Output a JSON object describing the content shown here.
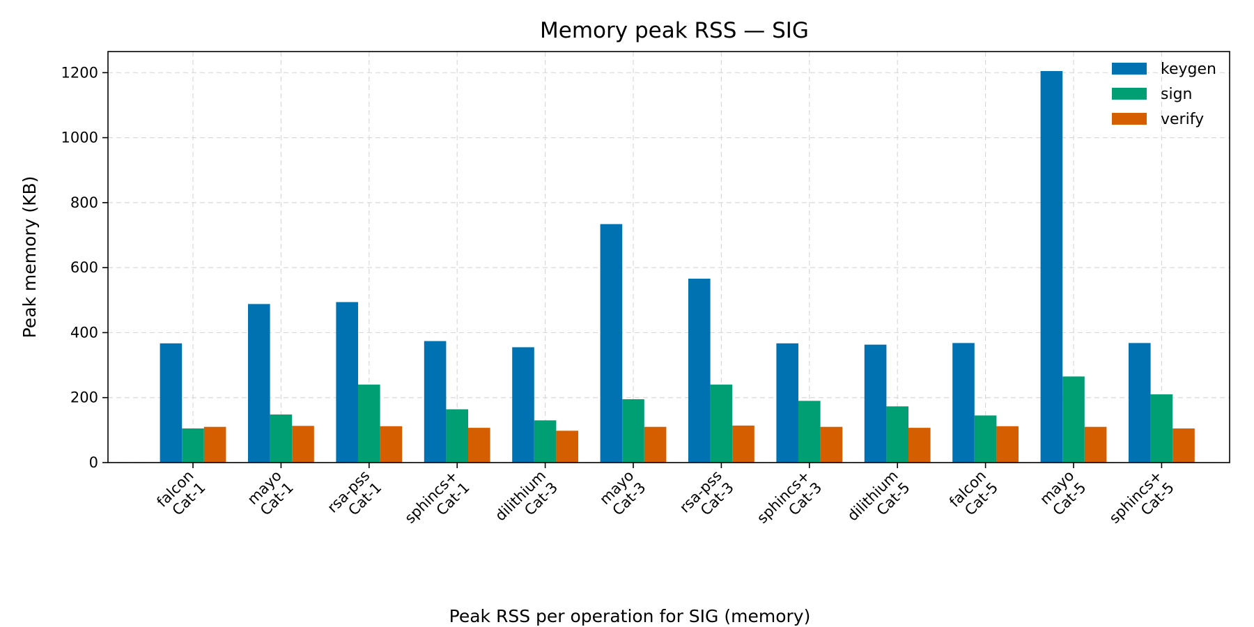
{
  "chart_data": {
    "type": "bar",
    "title": "Memory peak RSS — SIG",
    "xlabel": "Peak RSS per operation for SIG (memory)",
    "ylabel": "Peak memory (KB)",
    "ylim": [
      0,
      1265
    ],
    "yticks": [
      0,
      200,
      400,
      600,
      800,
      1000,
      1200
    ],
    "grid": true,
    "legend_position": "top-right",
    "categories": [
      [
        "falcon",
        "Cat-1"
      ],
      [
        "mayo",
        "Cat-1"
      ],
      [
        "rsa-pss",
        "Cat-1"
      ],
      [
        "sphincs+",
        "Cat-1"
      ],
      [
        "dilithium",
        "Cat-3"
      ],
      [
        "mayo",
        "Cat-3"
      ],
      [
        "rsa-pss",
        "Cat-3"
      ],
      [
        "sphincs+",
        "Cat-3"
      ],
      [
        "dilithium",
        "Cat-5"
      ],
      [
        "falcon",
        "Cat-5"
      ],
      [
        "mayo",
        "Cat-5"
      ],
      [
        "sphincs+",
        "Cat-5"
      ]
    ],
    "series": [
      {
        "name": "keygen",
        "color": "#0072b2",
        "values": [
          367,
          488,
          494,
          374,
          355,
          734,
          566,
          367,
          363,
          368,
          1205,
          368
        ]
      },
      {
        "name": "sign",
        "color": "#009e73",
        "values": [
          105,
          148,
          240,
          164,
          130,
          195,
          240,
          190,
          173,
          145,
          265,
          210
        ]
      },
      {
        "name": "verify",
        "color": "#d55e00",
        "values": [
          110,
          113,
          112,
          107,
          98,
          110,
          114,
          110,
          107,
          112,
          110,
          105
        ]
      }
    ]
  }
}
